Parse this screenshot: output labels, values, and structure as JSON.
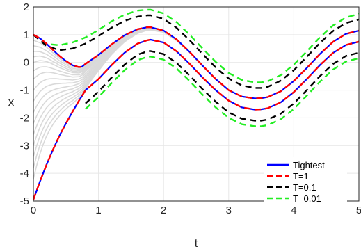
{
  "chart_data": {
    "type": "line",
    "title": "",
    "xlabel": "t",
    "ylabel": "x",
    "xlim": [
      0,
      5
    ],
    "ylim": [
      -5,
      2
    ],
    "xticks": [
      "0",
      "1",
      "2",
      "3",
      "4",
      "5"
    ],
    "yticks": [
      "-5",
      "-4",
      "-3",
      "-2",
      "-1",
      "0",
      "1",
      "2"
    ],
    "grid": true,
    "legend_position": "bottom-right",
    "background_trajectories": {
      "color": "#d9d9d9",
      "initial_values": [
        1.0,
        0.8,
        0.6,
        0.4,
        0.2,
        0.0,
        -0.3,
        -0.6,
        -1.0,
        -1.4,
        -1.8,
        -2.2,
        -2.6,
        -3.0,
        -3.4,
        -3.8,
        -4.2
      ],
      "converges_to": "upper Tightest bound"
    },
    "series": [
      {
        "name": "Tightest",
        "color": "#0000ff",
        "style": "solid",
        "upper": {
          "x": [
            0,
            0.1,
            0.2,
            0.3,
            0.4,
            0.5,
            0.6,
            0.7,
            0.75,
            0.8,
            1.0,
            1.2,
            1.4,
            1.6,
            1.75,
            1.8,
            2.0,
            2.2,
            2.4,
            2.6,
            2.8,
            3.0,
            3.2,
            3.4,
            3.5,
            3.6,
            3.8,
            4.0,
            4.2,
            4.4,
            4.6,
            4.8,
            5.0
          ],
          "y": [
            1.0,
            0.87,
            0.68,
            0.45,
            0.23,
            0.05,
            -0.1,
            -0.17,
            -0.15,
            -0.05,
            0.27,
            0.65,
            0.98,
            1.2,
            1.27,
            1.27,
            1.15,
            0.83,
            0.38,
            -0.12,
            -0.6,
            -1.0,
            -1.23,
            -1.3,
            -1.29,
            -1.25,
            -1.04,
            -0.67,
            -0.2,
            0.3,
            0.74,
            1.03,
            1.15
          ]
        },
        "lower": {
          "x": [
            0,
            0.1,
            0.2,
            0.3,
            0.4,
            0.5,
            0.6,
            0.7,
            0.75,
            0.8,
            1.0,
            1.2,
            1.4,
            1.6,
            1.75,
            1.8,
            2.0,
            2.2,
            2.4,
            2.6,
            2.8,
            3.0,
            3.2,
            3.4,
            3.5,
            3.6,
            3.8,
            4.0,
            4.2,
            4.4,
            4.6,
            4.8,
            5.0
          ],
          "y": [
            -4.95,
            -4.3,
            -3.7,
            -3.15,
            -2.65,
            -2.2,
            -1.78,
            -1.38,
            -1.2,
            -1.0,
            -0.6,
            -0.1,
            0.35,
            0.68,
            0.8,
            0.82,
            0.72,
            0.4,
            -0.05,
            -0.55,
            -1.0,
            -1.38,
            -1.62,
            -1.7,
            -1.69,
            -1.65,
            -1.44,
            -1.07,
            -0.6,
            -0.1,
            0.34,
            0.63,
            0.75
          ]
        }
      },
      {
        "name": "T=1",
        "color": "#ff0000",
        "style": "dashed",
        "same_as": "Tightest"
      },
      {
        "name": "T=0.1",
        "color": "#000000",
        "style": "dashed",
        "upper": {
          "x": [
            0,
            0.2,
            0.4,
            0.6,
            0.8,
            1.0,
            1.2,
            1.4,
            1.6,
            1.75,
            1.8,
            2.0,
            2.2,
            2.4,
            2.6,
            2.8,
            3.0,
            3.2,
            3.4,
            3.5,
            3.6,
            3.8,
            4.0,
            4.2,
            4.4,
            4.6,
            4.8,
            5.0
          ],
          "y": [
            1.0,
            0.6,
            0.44,
            0.5,
            0.68,
            0.95,
            1.25,
            1.5,
            1.65,
            1.7,
            1.7,
            1.57,
            1.25,
            0.8,
            0.3,
            -0.18,
            -0.58,
            -0.83,
            -0.92,
            -0.92,
            -0.88,
            -0.66,
            -0.28,
            0.2,
            0.7,
            1.13,
            1.42,
            1.55
          ]
        },
        "lower": {
          "x": [
            0.8,
            1.0,
            1.2,
            1.4,
            1.6,
            1.75,
            1.8,
            2.0,
            2.2,
            2.4,
            2.6,
            2.8,
            3.0,
            3.2,
            3.4,
            3.5,
            3.6,
            3.8,
            4.0,
            4.2,
            4.4,
            4.6,
            4.8,
            5.0
          ],
          "y": [
            -1.48,
            -1.05,
            -0.55,
            -0.08,
            0.28,
            0.4,
            0.41,
            0.3,
            -0.02,
            -0.47,
            -0.97,
            -1.42,
            -1.8,
            -2.03,
            -2.1,
            -2.1,
            -2.06,
            -1.85,
            -1.48,
            -1.0,
            -0.5,
            -0.06,
            0.23,
            0.35
          ]
        }
      },
      {
        "name": "T=0.01",
        "color": "#22ee22",
        "style": "dashed",
        "upper": {
          "x": [
            0,
            0.2,
            0.4,
            0.6,
            0.8,
            1.0,
            1.2,
            1.4,
            1.6,
            1.75,
            1.8,
            2.0,
            2.2,
            2.4,
            2.6,
            2.8,
            3.0,
            3.2,
            3.4,
            3.5,
            3.6,
            3.8,
            4.0,
            4.2,
            4.4,
            4.6,
            4.8,
            5.0
          ],
          "y": [
            1.0,
            0.67,
            0.62,
            0.72,
            0.9,
            1.17,
            1.48,
            1.72,
            1.87,
            1.9,
            1.9,
            1.77,
            1.45,
            1.0,
            0.5,
            0.02,
            -0.38,
            -0.63,
            -0.72,
            -0.72,
            -0.68,
            -0.46,
            -0.08,
            0.4,
            0.9,
            1.33,
            1.62,
            1.75
          ]
        },
        "lower": {
          "x": [
            0.8,
            1.0,
            1.2,
            1.4,
            1.6,
            1.75,
            1.8,
            2.0,
            2.2,
            2.4,
            2.6,
            2.8,
            3.0,
            3.2,
            3.4,
            3.5,
            3.6,
            3.8,
            4.0,
            4.2,
            4.4,
            4.6,
            4.8,
            5.0
          ],
          "y": [
            -1.68,
            -1.25,
            -0.75,
            -0.28,
            0.08,
            0.2,
            0.21,
            0.1,
            -0.22,
            -0.67,
            -1.17,
            -1.62,
            -2.0,
            -2.23,
            -2.3,
            -2.3,
            -2.26,
            -2.05,
            -1.68,
            -1.2,
            -0.7,
            -0.26,
            0.03,
            0.15
          ]
        }
      }
    ]
  }
}
